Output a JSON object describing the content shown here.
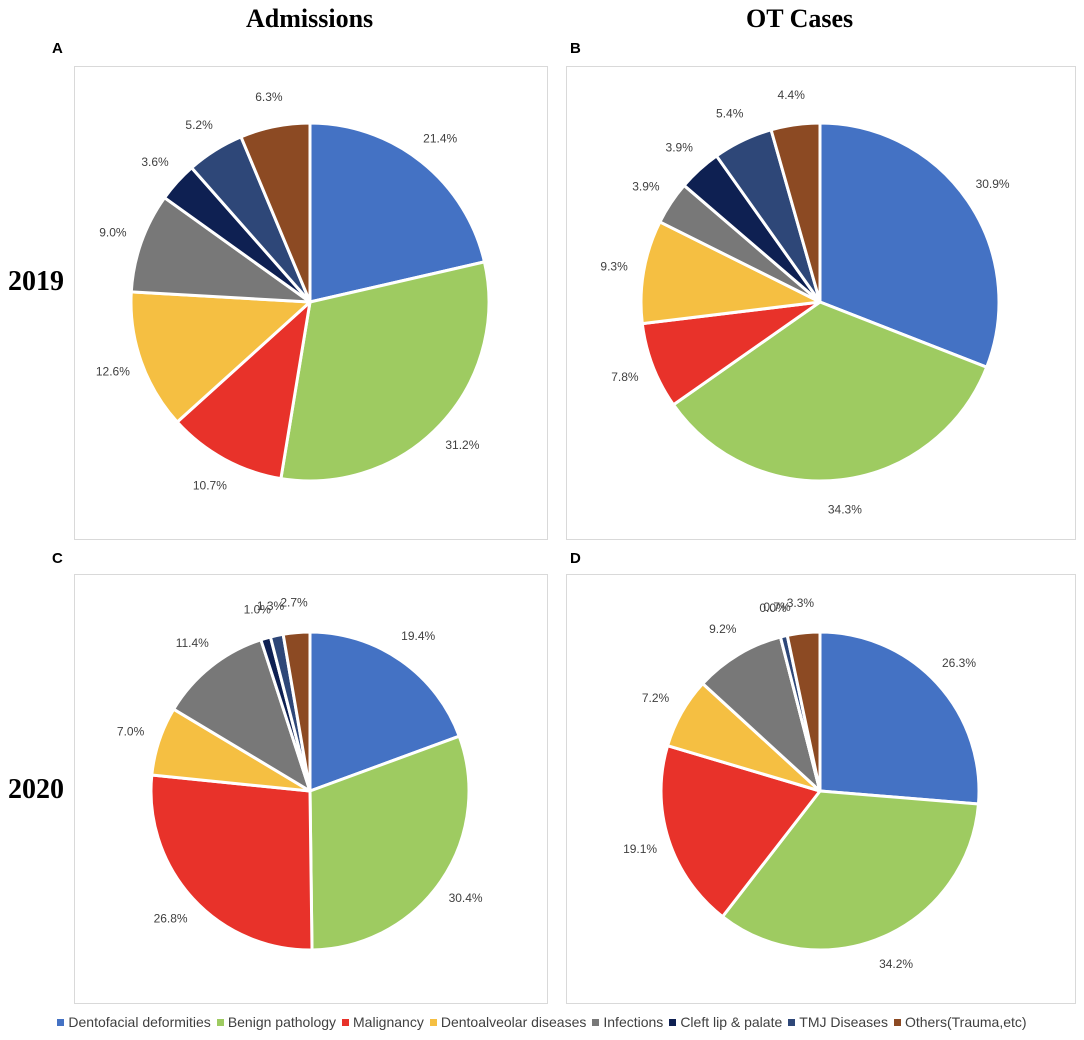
{
  "headers": {
    "col1": "Admissions",
    "col2": "OT Cases",
    "row1": "2019",
    "row2": "2020"
  },
  "colors": {
    "Dentofacial deformities": "#4472c4",
    "Benign pathology": "#9ecb61",
    "Malignancy": "#e8322a",
    "Dentoalveolar diseases": "#f5bf42",
    "Infections": "#787878",
    "Cleft lip & palate": "#0e2052",
    "TMJ Diseases": "#2e4778",
    "Others(Trauma,etc)": "#8c4a23"
  },
  "legend": [
    "Dentofacial deformities",
    "Benign pathology",
    "Malignancy",
    "Dentoalveolar diseases",
    "Infections",
    "Cleft lip & palate",
    "TMJ Diseases",
    "Others(Trauma,etc)"
  ],
  "chart_data": [
    {
      "panel": "A",
      "type": "pie",
      "column": "Admissions",
      "year": "2019",
      "categories": [
        "Dentofacial deformities",
        "Benign pathology",
        "Malignancy",
        "Dentoalveolar diseases",
        "Infections",
        "Cleft lip & palate",
        "TMJ Diseases",
        "Others(Trauma,etc)"
      ],
      "values": [
        21.4,
        31.2,
        10.7,
        12.6,
        9.0,
        3.6,
        5.2,
        6.3
      ],
      "labels": [
        "21.4%",
        "31.2%",
        "10.7%",
        "12.6%",
        "9.0%",
        "3.6%",
        "5.2%",
        "6.3%"
      ]
    },
    {
      "panel": "B",
      "type": "pie",
      "column": "OT Cases",
      "year": "2019",
      "categories": [
        "Dentofacial deformities",
        "Benign pathology",
        "Malignancy",
        "Dentoalveolar diseases",
        "Infections",
        "Cleft lip & palate",
        "TMJ Diseases",
        "Others(Trauma,etc)"
      ],
      "values": [
        30.9,
        34.3,
        7.8,
        9.3,
        3.9,
        3.9,
        5.4,
        4.4
      ],
      "labels": [
        "30.9%",
        "34.3%",
        "7.8%",
        "9.3%",
        "3.9%",
        "3.9%",
        "5.4%",
        "4.4%"
      ]
    },
    {
      "panel": "C",
      "type": "pie",
      "column": "Admissions",
      "year": "2020",
      "categories": [
        "Dentofacial deformities",
        "Benign pathology",
        "Malignancy",
        "Dentoalveolar diseases",
        "Infections",
        "Cleft lip & palate",
        "TMJ Diseases",
        "Others(Trauma,etc)"
      ],
      "values": [
        19.4,
        30.4,
        26.8,
        7.0,
        11.4,
        1.0,
        1.3,
        2.7
      ],
      "labels": [
        "19.4%",
        "30.4%",
        "26.8%",
        "7.0%",
        "11.4%",
        "1.0%",
        "1.3%",
        "2.7%"
      ]
    },
    {
      "panel": "D",
      "type": "pie",
      "column": "OT Cases",
      "year": "2020",
      "categories": [
        "Dentofacial deformities",
        "Benign pathology",
        "Malignancy",
        "Dentoalveolar diseases",
        "Infections",
        "Cleft lip & palate",
        "TMJ Diseases",
        "Others(Trauma,etc)"
      ],
      "values": [
        26.3,
        34.2,
        19.1,
        7.2,
        9.2,
        0.0,
        0.7,
        3.3
      ],
      "labels": [
        "26.3%",
        "34.2%",
        "19.1%",
        "7.2%",
        "9.2%",
        "0.0%",
        "0.7%",
        "3.3%"
      ]
    }
  ]
}
